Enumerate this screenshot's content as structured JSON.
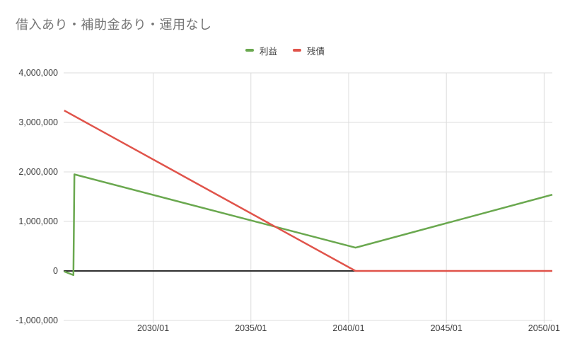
{
  "chart_data": {
    "type": "line",
    "title": "借入あり・補助金あり・運用なし",
    "title_color": "#757575",
    "legend_position": "top",
    "grid": true,
    "grid_color": "#dcdcdc",
    "zero_line_color": "#2f2f2f",
    "axis_label_color": "#3b3b3b",
    "x_axis": {
      "min": 2025.42,
      "max": 2050.42,
      "ticks": [
        {
          "value": 2030,
          "label": "2030/01"
        },
        {
          "value": 2035,
          "label": "2035/01"
        },
        {
          "value": 2040,
          "label": "2040/01"
        },
        {
          "value": 2045,
          "label": "2045/01"
        },
        {
          "value": 2050,
          "label": "2050/01"
        }
      ]
    },
    "y_axis": {
      "min": -1000000,
      "max": 4000000,
      "ticks": [
        {
          "value": 4000000,
          "label": "4,000,000"
        },
        {
          "value": 3000000,
          "label": "3,000,000"
        },
        {
          "value": 2000000,
          "label": "2,000,000"
        },
        {
          "value": 1000000,
          "label": "1,000,000"
        },
        {
          "value": 0,
          "label": "0"
        },
        {
          "value": -1000000,
          "label": "-1,000,000"
        }
      ]
    },
    "series": [
      {
        "name": "利益",
        "key": "profit",
        "color": "#6aa84f",
        "points": [
          [
            2025.45,
            -10000
          ],
          [
            2025.92,
            -85000
          ],
          [
            2025.97,
            1950000
          ],
          [
            2040.35,
            470000
          ],
          [
            2050.42,
            1540000
          ]
        ]
      },
      {
        "name": "残債",
        "key": "remaining-debt",
        "color": "#e0534a",
        "points": [
          [
            2025.45,
            3240000
          ],
          [
            2040.35,
            0
          ],
          [
            2050.42,
            0
          ]
        ]
      }
    ]
  }
}
